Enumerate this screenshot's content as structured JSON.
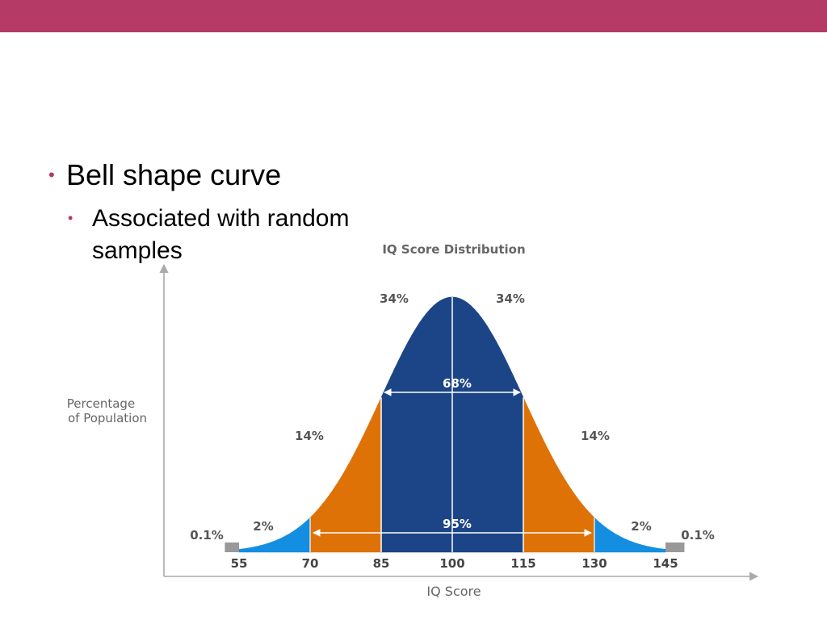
{
  "colors": {
    "header_bar": "#b53a66",
    "bullet": "#b53a66",
    "center": "#1b4586",
    "inner": "#df7206",
    "outer": "#138ee0",
    "tail": "#999999",
    "axis": "#aaaaaa",
    "label": "#666666"
  },
  "slide": {
    "bullet_1": "Bell shape curve",
    "bullet_2": "Associated with random samples",
    "bullet_glyph": "•"
  },
  "chart_data": {
    "type": "area",
    "title": "IQ Score Distribution",
    "xlabel": "IQ Score",
    "ylabel_line1": "Percentage",
    "ylabel_line2": "of Population",
    "x_ticks": [
      55,
      70,
      85,
      100,
      115,
      130,
      145
    ],
    "mean": 100,
    "sd": 15,
    "xlim": [
      50,
      160
    ],
    "segments": [
      {
        "from": 85,
        "to": 100,
        "label": "34%",
        "color": "center"
      },
      {
        "from": 100,
        "to": 115,
        "label": "34%",
        "color": "center"
      },
      {
        "from": 70,
        "to": 85,
        "label": "14%",
        "color": "inner"
      },
      {
        "from": 115,
        "to": 130,
        "label": "14%",
        "color": "inner"
      },
      {
        "from": 55,
        "to": 70,
        "label": "2%",
        "color": "outer"
      },
      {
        "from": 130,
        "to": 145,
        "label": "2%",
        "color": "outer"
      }
    ],
    "tails": [
      {
        "from": 52,
        "to": 55,
        "label": "0.1%"
      },
      {
        "from": 145,
        "to": 149,
        "label": "0.1%"
      }
    ],
    "spans": [
      {
        "from": 85,
        "to": 115,
        "label": "68%"
      },
      {
        "from": 70,
        "to": 130,
        "label": "95%"
      }
    ]
  }
}
